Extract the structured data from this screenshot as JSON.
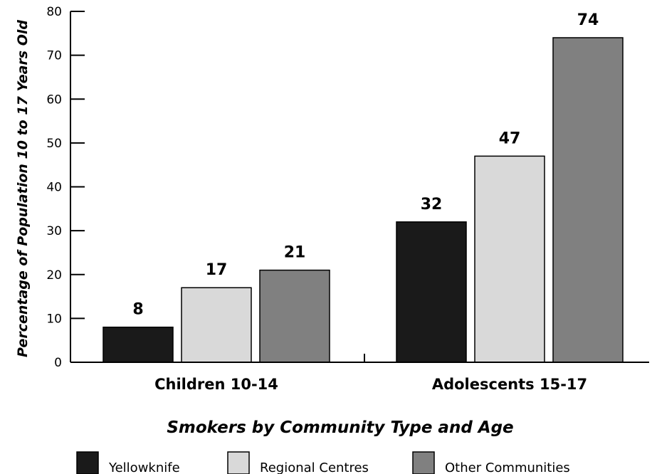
{
  "chart_data": {
    "type": "bar",
    "title": "",
    "xlabel": "Smokers by Community Type and Age",
    "ylabel": "Percentage of Population 10 to 17 Years Old",
    "categories": [
      "Children 10-14",
      "Adolescents 15-17"
    ],
    "series": [
      {
        "name": "Yellowknife",
        "values": [
          8,
          32
        ],
        "color": "#1a1a1a"
      },
      {
        "name": "Regional Centres",
        "values": [
          17,
          47
        ],
        "color": "#d9d9d9"
      },
      {
        "name": "Other Communities",
        "values": [
          21,
          74
        ],
        "color": "#808080"
      }
    ],
    "ylim": [
      0,
      80
    ],
    "yticks": [
      0,
      10,
      20,
      30,
      40,
      50,
      60,
      70,
      80
    ],
    "grid": false,
    "legend_position": "bottom"
  }
}
